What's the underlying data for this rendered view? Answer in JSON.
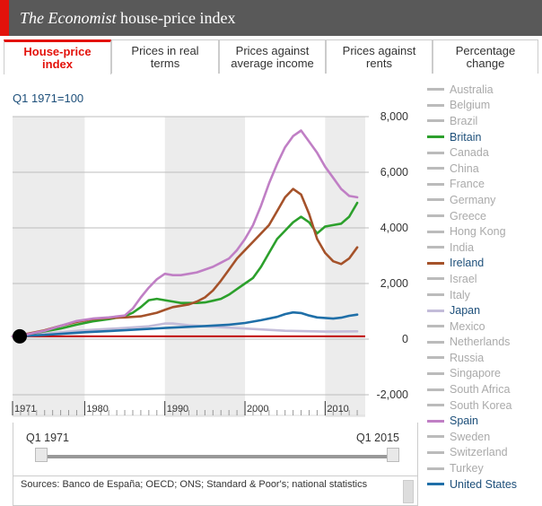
{
  "header": {
    "title_italic": "The Economist",
    "title_rest": " house-price index"
  },
  "tabs": [
    {
      "label": "House-price index",
      "active": true
    },
    {
      "label": "Prices in real terms",
      "active": false
    },
    {
      "label": "Prices against average income",
      "active": false
    },
    {
      "label": "Prices against rents",
      "active": false
    },
    {
      "label": "Percentage change",
      "active": false
    }
  ],
  "index_label": "Q1 1971=100",
  "legend": [
    {
      "name": "Australia",
      "on": false
    },
    {
      "name": "Belgium",
      "on": false
    },
    {
      "name": "Brazil",
      "on": false
    },
    {
      "name": "Britain",
      "on": true,
      "color": "#2ca02c"
    },
    {
      "name": "Canada",
      "on": false
    },
    {
      "name": "China",
      "on": false
    },
    {
      "name": "France",
      "on": false
    },
    {
      "name": "Germany",
      "on": false
    },
    {
      "name": "Greece",
      "on": false
    },
    {
      "name": "Hong Kong",
      "on": false
    },
    {
      "name": "India",
      "on": false
    },
    {
      "name": "Ireland",
      "on": true,
      "color": "#a5522a"
    },
    {
      "name": "Israel",
      "on": false
    },
    {
      "name": "Italy",
      "on": false
    },
    {
      "name": "Japan",
      "on": true,
      "color": "#c3bcd9"
    },
    {
      "name": "Mexico",
      "on": false
    },
    {
      "name": "Netherlands",
      "on": false
    },
    {
      "name": "Russia",
      "on": false
    },
    {
      "name": "Singapore",
      "on": false
    },
    {
      "name": "South Africa",
      "on": false
    },
    {
      "name": "South Korea",
      "on": false
    },
    {
      "name": "Spain",
      "on": true,
      "color": "#c07fc5"
    },
    {
      "name": "Sweden",
      "on": false
    },
    {
      "name": "Switzerland",
      "on": false
    },
    {
      "name": "Turkey",
      "on": false
    },
    {
      "name": "United States",
      "on": true,
      "color": "#1f6fa8"
    }
  ],
  "slider": {
    "start_label": "Q1 1971",
    "end_label": "Q1 2015"
  },
  "sources": "Sources: Banco de España; OECD; ONS; Standard & Poor's; national statistics",
  "chart_data": {
    "type": "line",
    "title": "The Economist house-price index",
    "ylabel": "Q1 1971=100",
    "ylim": [
      -2000,
      8000
    ],
    "xlim": [
      1971,
      2015
    ],
    "yticks": [
      -2000,
      0,
      2000,
      4000,
      6000,
      8000
    ],
    "ytick_labels": [
      "-2,000",
      "0",
      "2,000",
      "4,000",
      "6,000",
      "8,000"
    ],
    "xticks": [
      1971,
      1980,
      1990,
      2000,
      2010
    ],
    "xtick_labels": [
      "1971",
      "1980",
      "1990",
      "2000",
      "2010"
    ],
    "baseline": 100,
    "series": [
      {
        "name": "Spain",
        "color": "#c07fc5",
        "x": [
          1971,
          1973,
          1975,
          1977,
          1979,
          1981,
          1983,
          1985,
          1986,
          1987,
          1988,
          1989,
          1990,
          1991,
          1992,
          1993,
          1994,
          1995,
          1996,
          1997,
          1998,
          1999,
          2000,
          2001,
          2002,
          2003,
          2004,
          2005,
          2006,
          2007,
          2008,
          2009,
          2010,
          2011,
          2012,
          2013,
          2014
        ],
        "y": [
          100,
          180,
          300,
          480,
          650,
          740,
          780,
          850,
          1100,
          1500,
          1850,
          2150,
          2350,
          2300,
          2300,
          2350,
          2400,
          2500,
          2600,
          2750,
          2900,
          3200,
          3600,
          4100,
          4800,
          5600,
          6300,
          6900,
          7300,
          7500,
          7100,
          6700,
          6200,
          5800,
          5400,
          5150,
          5100
        ]
      },
      {
        "name": "Ireland",
        "color": "#a5522a",
        "x": [
          1971,
          1973,
          1975,
          1977,
          1979,
          1981,
          1983,
          1985,
          1987,
          1989,
          1990,
          1991,
          1992,
          1993,
          1994,
          1995,
          1996,
          1997,
          1998,
          1999,
          2000,
          2001,
          2002,
          2003,
          2004,
          2005,
          2006,
          2007,
          2008,
          2009,
          2010,
          2011,
          2012,
          2013,
          2014
        ],
        "y": [
          100,
          200,
          320,
          480,
          620,
          720,
          760,
          780,
          820,
          950,
          1050,
          1150,
          1200,
          1250,
          1350,
          1500,
          1750,
          2100,
          2500,
          2900,
          3200,
          3500,
          3800,
          4100,
          4600,
          5100,
          5400,
          5200,
          4500,
          3600,
          3100,
          2800,
          2700,
          2900,
          3300
        ]
      },
      {
        "name": "Britain",
        "color": "#2ca02c",
        "x": [
          1971,
          1973,
          1975,
          1977,
          1979,
          1981,
          1983,
          1985,
          1986,
          1987,
          1988,
          1989,
          1990,
          1991,
          1992,
          1993,
          1994,
          1995,
          1996,
          1997,
          1998,
          1999,
          2000,
          2001,
          2002,
          2003,
          2004,
          2005,
          2006,
          2007,
          2008,
          2009,
          2010,
          2011,
          2012,
          2013,
          2014
        ],
        "y": [
          100,
          180,
          280,
          380,
          520,
          640,
          720,
          820,
          950,
          1150,
          1400,
          1450,
          1400,
          1350,
          1300,
          1300,
          1300,
          1320,
          1380,
          1450,
          1600,
          1800,
          2000,
          2200,
          2600,
          3100,
          3600,
          3900,
          4200,
          4400,
          4200,
          3800,
          4050,
          4100,
          4150,
          4400,
          4900
        ]
      },
      {
        "name": "Japan",
        "color": "#c3bcd9",
        "x": [
          1971,
          1975,
          1980,
          1985,
          1988,
          1990,
          1991,
          1993,
          1995,
          2000,
          2005,
          2010,
          2014
        ],
        "y": [
          100,
          200,
          320,
          400,
          460,
          560,
          560,
          500,
          460,
          380,
          300,
          270,
          280
        ]
      },
      {
        "name": "United States",
        "color": "#1f6fa8",
        "x": [
          1971,
          1975,
          1980,
          1985,
          1990,
          1995,
          1998,
          2000,
          2002,
          2004,
          2005,
          2006,
          2007,
          2008,
          2009,
          2010,
          2011,
          2012,
          2013,
          2014
        ],
        "y": [
          100,
          150,
          250,
          320,
          400,
          470,
          520,
          580,
          680,
          800,
          900,
          960,
          940,
          850,
          780,
          760,
          740,
          770,
          840,
          880
        ]
      }
    ]
  }
}
